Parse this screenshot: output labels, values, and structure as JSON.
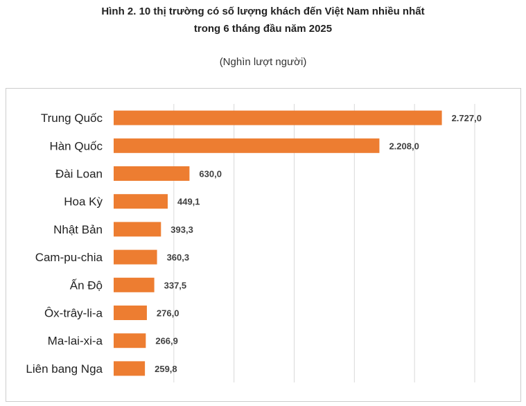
{
  "header": {
    "title_line1": "Hình 2. 10 thị trường có số lượng khách đến Việt Nam nhiều nhất",
    "title_line2": "trong 6 tháng đầu năm 2025",
    "unit": "(Nghìn lượt người)"
  },
  "chart_data": {
    "type": "bar",
    "orientation": "horizontal",
    "title": "Hình 2. 10 thị trường có số lượng khách đến Việt Nam nhiều nhất trong 6 tháng đầu năm 2025",
    "subtitle": "(Nghìn lượt người)",
    "categories": [
      "Trung Quốc",
      "Hàn Quốc",
      "Đài Loan",
      "Hoa Kỳ",
      "Nhật Bản",
      "Cam-pu-chia",
      "Ấn Độ",
      "Ôx-trây-li-a",
      "Ma-lai-xi-a",
      "Liên bang Nga"
    ],
    "values": [
      2727.0,
      2208.0,
      630.0,
      449.1,
      393.3,
      360.3,
      337.5,
      276.0,
      266.9,
      259.8
    ],
    "value_labels": [
      "2.727,0",
      "2.208,0",
      "630,0",
      "449,1",
      "393,3",
      "360,3",
      "337,5",
      "276,0",
      "266,9",
      "259,8"
    ],
    "xlim": [
      0,
      3000
    ],
    "grid": true,
    "bar_color": "#ED7D31",
    "grid_color": "#D9D9D9"
  }
}
